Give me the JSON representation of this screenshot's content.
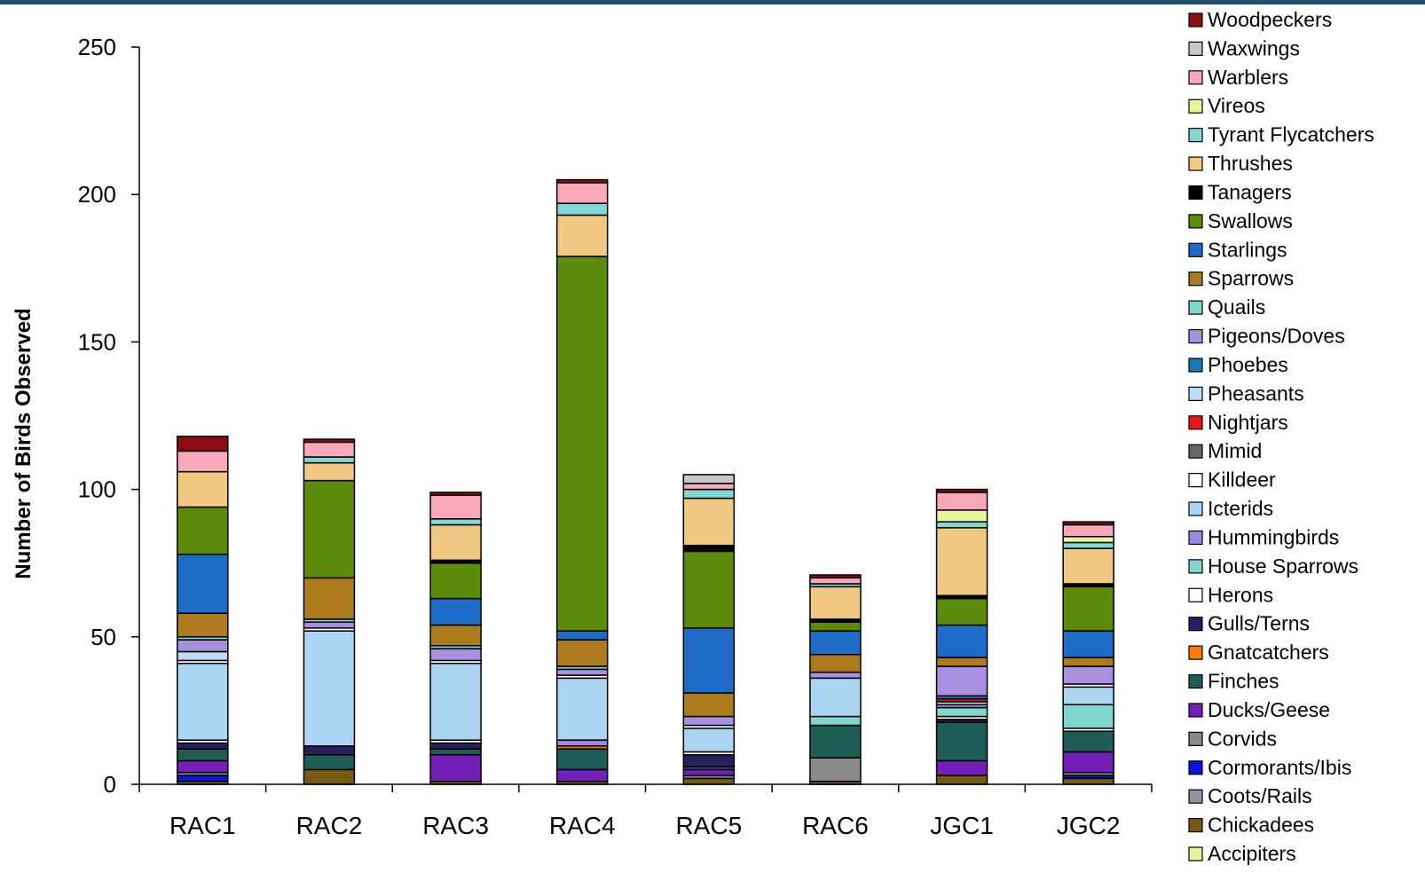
{
  "chart_data": {
    "type": "bar",
    "stacked": true,
    "title": "",
    "xlabel": "",
    "ylabel": "Number of Birds Observed",
    "ylim": [
      0,
      250
    ],
    "yticks": [
      0,
      50,
      100,
      150,
      200,
      250
    ],
    "grid": false,
    "legend_position": "right",
    "categories": [
      "RAC1",
      "RAC2",
      "RAC3",
      "RAC4",
      "RAC5",
      "RAC6",
      "JGC1",
      "JGC2"
    ],
    "series": [
      {
        "name": "Accipiters",
        "color": "#e6f59a",
        "values": [
          0,
          0,
          0,
          0,
          0,
          0,
          0,
          0
        ]
      },
      {
        "name": "Chickadees",
        "color": "#7a5a12",
        "values": [
          1,
          5,
          1,
          1,
          2,
          1,
          3,
          2
        ]
      },
      {
        "name": "Coots/Rails",
        "color": "#8c98a2",
        "values": [
          0,
          0,
          0,
          0,
          0,
          0,
          0,
          0
        ]
      },
      {
        "name": "Cormorants/Ibis",
        "color": "#0a14e0",
        "values": [
          2,
          0,
          0,
          0,
          0,
          0,
          0,
          1
        ]
      },
      {
        "name": "Corvids",
        "color": "#8a8a8a",
        "values": [
          1,
          0,
          0,
          0,
          1,
          8,
          0,
          1
        ]
      },
      {
        "name": "Ducks/Geese",
        "color": "#7420b8",
        "values": [
          4,
          0,
          9,
          4,
          2,
          0,
          5,
          7
        ]
      },
      {
        "name": "Finches",
        "color": "#1e5c56",
        "values": [
          4,
          5,
          2,
          7,
          1,
          11,
          13,
          7
        ]
      },
      {
        "name": "Gnatcatchers",
        "color": "#ff7a00",
        "values": [
          0,
          0,
          0,
          1,
          0,
          0,
          0,
          0
        ]
      },
      {
        "name": "Gulls/Terns",
        "color": "#2a1f5e",
        "values": [
          2,
          3,
          2,
          0,
          4,
          0,
          1,
          0
        ]
      },
      {
        "name": "Herons",
        "color": "#ffffff",
        "values": [
          1,
          0,
          1,
          0,
          1,
          0,
          1,
          1
        ]
      },
      {
        "name": "House Sparrows",
        "color": "#7fd7cf",
        "values": [
          0,
          0,
          0,
          0,
          0,
          3,
          3,
          8
        ]
      },
      {
        "name": "Hummingbirds",
        "color": "#a086e0",
        "values": [
          0,
          0,
          0,
          2,
          0,
          0,
          1,
          0
        ]
      },
      {
        "name": "Icterids",
        "color": "#aad4f2",
        "values": [
          26,
          39,
          26,
          21,
          8,
          13,
          1,
          6
        ]
      },
      {
        "name": "Killdeer",
        "color": "#ffffff",
        "values": [
          1,
          1,
          1,
          1,
          1,
          0,
          0,
          1
        ]
      },
      {
        "name": "Mimid",
        "color": "#666666",
        "values": [
          0,
          0,
          0,
          0,
          0,
          0,
          0,
          0
        ]
      },
      {
        "name": "Nightjars",
        "color": "#f01414",
        "values": [
          0,
          0,
          0,
          0,
          0,
          0,
          1,
          0
        ]
      },
      {
        "name": "Pheasants",
        "color": "#bcdcf4",
        "values": [
          3,
          0,
          0,
          0,
          0,
          0,
          0,
          0
        ]
      },
      {
        "name": "Phoebes",
        "color": "#1e78b4",
        "values": [
          0,
          0,
          0,
          0,
          0,
          0,
          1,
          0
        ]
      },
      {
        "name": "Pigeons/Doves",
        "color": "#a890e0",
        "values": [
          4,
          2,
          4,
          2,
          3,
          2,
          10,
          6
        ]
      },
      {
        "name": "Quails",
        "color": "#7fd7cf",
        "values": [
          1,
          1,
          1,
          1,
          0,
          0,
          0,
          0
        ]
      },
      {
        "name": "Sparrows",
        "color": "#ae7a1e",
        "values": [
          8,
          14,
          7,
          9,
          8,
          6,
          3,
          3
        ]
      },
      {
        "name": "Starlings",
        "color": "#1f6bc8",
        "values": [
          20,
          0,
          9,
          3,
          22,
          8,
          11,
          9
        ]
      },
      {
        "name": "Swallows",
        "color": "#5c8a0a",
        "values": [
          16,
          33,
          12,
          127,
          26,
          3,
          9,
          15
        ]
      },
      {
        "name": "Tanagers",
        "color": "#000000",
        "values": [
          0,
          0,
          1,
          0,
          2,
          1,
          1,
          1
        ]
      },
      {
        "name": "Thrushes",
        "color": "#f0c882",
        "values": [
          12,
          6,
          12,
          14,
          16,
          11,
          23,
          12
        ]
      },
      {
        "name": "Tyrant Flycatchers",
        "color": "#80d8d4",
        "values": [
          0,
          2,
          2,
          4,
          3,
          1,
          2,
          2
        ]
      },
      {
        "name": "Vireos",
        "color": "#e6f59a",
        "values": [
          0,
          0,
          0,
          0,
          0,
          0,
          4,
          2
        ]
      },
      {
        "name": "Warblers",
        "color": "#f8a8b8",
        "values": [
          7,
          5,
          8,
          7,
          2,
          2,
          6,
          4
        ]
      },
      {
        "name": "Waxwings",
        "color": "#c8c8c8",
        "values": [
          0,
          0,
          0,
          0,
          3,
          0,
          0,
          0
        ]
      },
      {
        "name": "Woodpeckers",
        "color": "#8c0e14",
        "values": [
          5,
          1,
          1,
          1,
          0,
          1,
          1,
          1
        ]
      }
    ]
  }
}
